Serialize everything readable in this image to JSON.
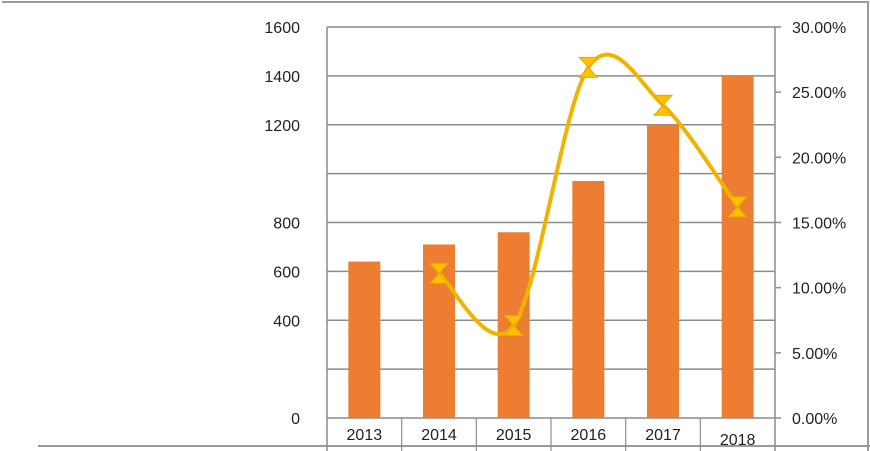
{
  "chart_data": {
    "type": "bar+line",
    "categories": [
      "2013",
      "2014",
      "2015",
      "2016",
      "2017",
      "2018"
    ],
    "series": [
      {
        "type": "bar",
        "axis": "left",
        "values": [
          640,
          710,
          760,
          970,
          1200,
          1400
        ],
        "color": "#ED7D31"
      },
      {
        "type": "line",
        "axis": "right",
        "smooth": true,
        "marker": "hourglass",
        "values": [
          null,
          11.1,
          7.1,
          26.9,
          24.0,
          16.2
        ],
        "color": "#F0B400"
      }
    ],
    "left_axis": {
      "ylim": [
        0,
        1600
      ],
      "tick_labels": [
        "0",
        "400",
        "600",
        "800",
        "1200",
        "1400",
        "1600"
      ],
      "tick_values": [
        0,
        400,
        600,
        800,
        1200,
        1400,
        1600
      ]
    },
    "right_axis": {
      "ylim": [
        0,
        30
      ],
      "tick_labels": [
        "0.00%",
        "5.00%",
        "10.00%",
        "15.00%",
        "20.00%",
        "25.00%",
        "30.00%"
      ],
      "tick_values": [
        0,
        5,
        10,
        15,
        20,
        25,
        30
      ]
    },
    "grid": true,
    "gridline_values": [
      0,
      200,
      400,
      600,
      800,
      1000,
      1200,
      1400,
      1600
    ]
  }
}
